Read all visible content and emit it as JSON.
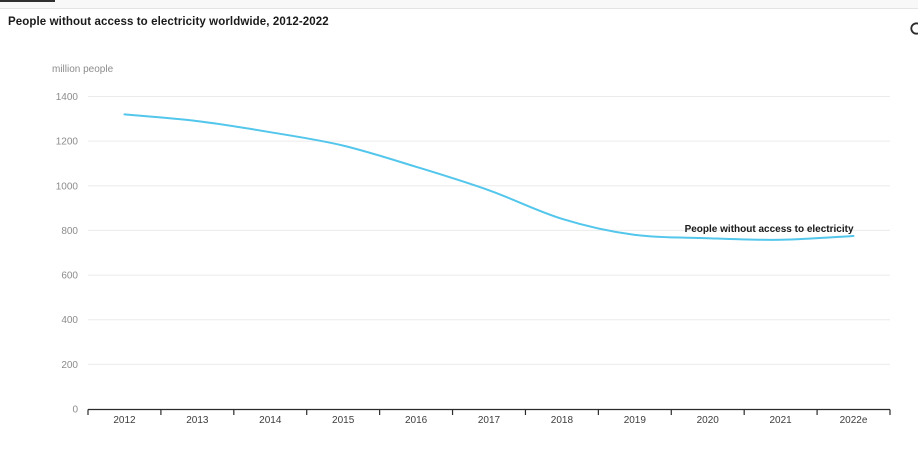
{
  "header": {
    "title": "People without access to electricity worldwide, 2012-2022",
    "corner_icon": "circle-icon"
  },
  "chart_data": {
    "type": "line",
    "title": "People without access to electricity worldwide, 2012-2022",
    "unit_label": "million people",
    "categories": [
      "2012",
      "2013",
      "2014",
      "2015",
      "2016",
      "2017",
      "2018",
      "2019",
      "2020",
      "2021",
      "2022e"
    ],
    "series": [
      {
        "name": "People without access to electricity",
        "values": [
          1320,
          1290,
          1240,
          1180,
          1085,
          980,
          852,
          780,
          765,
          758,
          775
        ],
        "color": "#53c6eb"
      }
    ],
    "ylim": [
      0,
      1400
    ],
    "yticks": [
      0,
      200,
      400,
      600,
      800,
      1000,
      1200,
      1400
    ],
    "grid": "horizontal",
    "legend": "end-of-line-label"
  },
  "colors": {
    "accent_line": "#53c6eb",
    "title_text": "#1a1a1a",
    "y_tick_text": "#8c8c8c",
    "x_tick_text": "#3d3d3d",
    "gridline": "#ebebeb",
    "axis_line": "#2a2a2a",
    "top_rule": "#e4e4e4"
  }
}
